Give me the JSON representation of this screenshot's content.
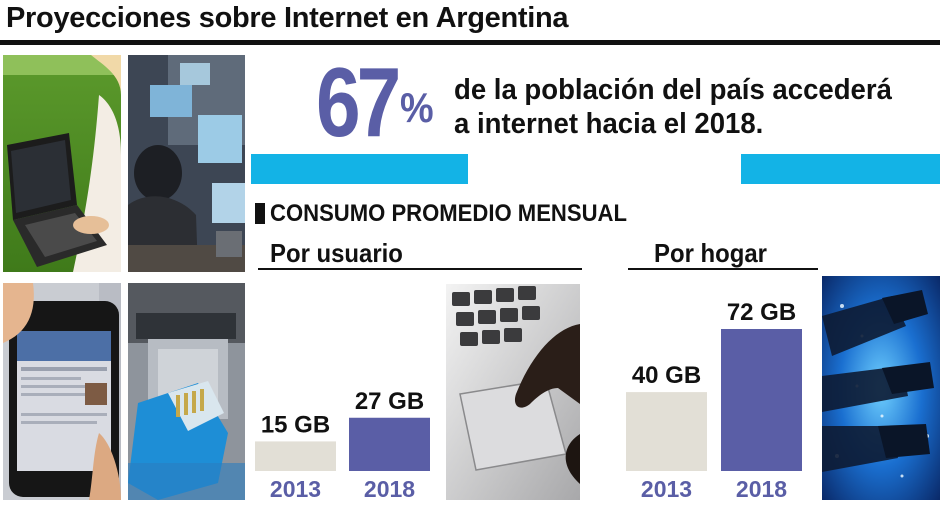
{
  "header": {
    "title": "Proyecciones sobre Internet en Argentina"
  },
  "headline": {
    "number": "67",
    "unit": "%",
    "line1": "de la población del país accederá",
    "line2": "a internet hacia el 2018."
  },
  "section": {
    "title": "CONSUMO PROMEDIO MENSUAL"
  },
  "colors": {
    "accent": "#5a5ea6",
    "bar_2013": "#e2dfd6",
    "bar_2018": "#5a5ea6",
    "cyan": "#13b3e6"
  },
  "chart_data": [
    {
      "type": "bar",
      "title": "Por usuario",
      "categories": [
        "2013",
        "2018"
      ],
      "values": [
        15,
        27
      ],
      "value_labels": [
        "15 GB",
        "27 GB"
      ]
    },
    {
      "type": "bar",
      "title": "Por hogar",
      "categories": [
        "2013",
        "2018"
      ],
      "values": [
        40,
        72
      ],
      "value_labels": [
        "40 GB",
        "72 GB"
      ]
    }
  ],
  "photos": [
    {
      "name": "laptop-on-grass-photo",
      "alt": "person using laptop on grass"
    },
    {
      "name": "computer-users-photo",
      "alt": "people using computers"
    },
    {
      "name": "smartphone-photo",
      "alt": "hand holding smartphone"
    },
    {
      "name": "ethernet-cable-photo",
      "alt": "blue ethernet cable in router port"
    },
    {
      "name": "touchpad-photo",
      "alt": "finger on laptop touchpad"
    },
    {
      "name": "fiber-optic-photo",
      "alt": "fiber optic cables"
    }
  ]
}
